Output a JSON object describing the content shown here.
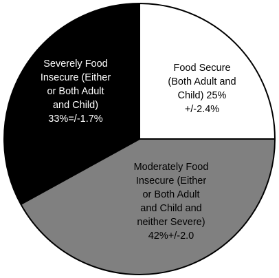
{
  "chart_data": {
    "type": "pie",
    "slices": [
      {
        "label_lines": [
          "Food Secure",
          "(Both Adult and",
          "Child) 25%",
          "+/-2.4%"
        ],
        "value": 25,
        "color": "#ffffff",
        "text_color": "#000000"
      },
      {
        "label_lines": [
          "Moderately Food",
          "Insecure (Either",
          "or Both Adult",
          "and Child and",
          "neither Severe)",
          "42%+/-2.0"
        ],
        "value": 42,
        "color": "#808080",
        "text_color": "#000000"
      },
      {
        "label_lines": [
          "Severely Food",
          "Insecure (Either",
          "or Both Adult",
          "and Child)",
          "33%=/-1.7%"
        ],
        "value": 33,
        "color": "#000000",
        "text_color": "#ffffff"
      }
    ],
    "stroke_color": "#000000"
  }
}
